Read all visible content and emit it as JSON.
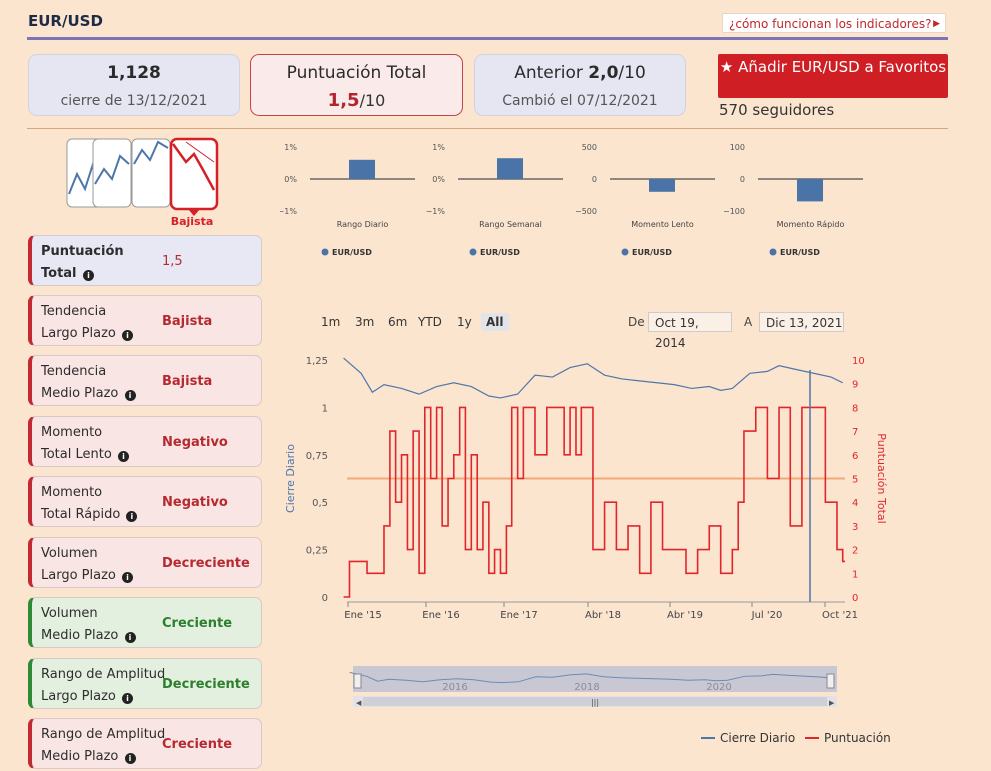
{
  "header": {
    "title": "EUR/USD",
    "help_link": "¿cómo funcionan los indicadores?"
  },
  "cards": {
    "close_value": "1,128",
    "close_date": "cierre de 13/12/2021",
    "total_title": "Puntuación Total",
    "total_score": "1,5",
    "total_denom": "/10",
    "prev_label": "Anterior ",
    "prev_score": "2,0",
    "prev_denom": "/10",
    "prev_changed": "Cambió el 07/12/2021"
  },
  "favorites": {
    "button_label": "Añadir EUR/USD a Favoritos",
    "followers": "570 seguidores"
  },
  "trend_badge": "Bajista",
  "indicators": [
    {
      "line1": "Puntuación",
      "line2": "Total",
      "value": "1,5"
    },
    {
      "line1": "Tendencia",
      "line2": "Largo Plazo",
      "value": "Bajista"
    },
    {
      "line1": "Tendencia",
      "line2": "Medio Plazo",
      "value": "Bajista"
    },
    {
      "line1": "Momento",
      "line2": "Total Lento",
      "value": "Negativo"
    },
    {
      "line1": "Momento",
      "line2": "Total Rápido",
      "value": "Negativo"
    },
    {
      "line1": "Volumen",
      "line2": "Largo Plazo",
      "value": "Decreciente"
    },
    {
      "line1": "Volumen",
      "line2": "Medio Plazo",
      "value": "Creciente"
    },
    {
      "line1": "Rango de Amplitud",
      "line2": "Largo Plazo",
      "value": "Decreciente"
    },
    {
      "line1": "Rango de Amplitud",
      "line2": "Medio Plazo",
      "value": "Creciente"
    }
  ],
  "timeframes": [
    "1m",
    "3m",
    "6m",
    "YTD",
    "1y",
    "All"
  ],
  "range": {
    "from_label": "De",
    "from": "Oct 19, 2014",
    "to_label": "A",
    "to": "Dic 13, 2021"
  },
  "colors": {
    "bar": "#4a74a8",
    "close_line": "#4e77a9",
    "score_line": "#e0262c",
    "accent": "#cf1f24"
  },
  "chart_data": [
    {
      "type": "bar",
      "title": "",
      "xlabel": "Rango Diario",
      "series": [
        {
          "name": "EUR/USD",
          "values": [
            0.6
          ]
        }
      ],
      "ylim": [
        -1,
        1
      ],
      "yticks": [
        "1%",
        "0%",
        "−1%"
      ]
    },
    {
      "type": "bar",
      "title": "",
      "xlabel": "Rango Semanal",
      "series": [
        {
          "name": "EUR/USD",
          "values": [
            0.65
          ]
        }
      ],
      "ylim": [
        -1,
        1
      ],
      "yticks": [
        "1%",
        "0%",
        "−1%"
      ]
    },
    {
      "type": "bar",
      "title": "",
      "xlabel": "Momento Lento",
      "series": [
        {
          "name": "EUR/USD",
          "values": [
            -200
          ]
        }
      ],
      "ylim": [
        -500,
        500
      ],
      "yticks": [
        "500",
        "0",
        "−500"
      ]
    },
    {
      "type": "bar",
      "title": "",
      "xlabel": "Momento Rápido",
      "series": [
        {
          "name": "EUR/USD",
          "values": [
            -70
          ]
        }
      ],
      "ylim": [
        -100,
        100
      ],
      "yticks": [
        "100",
        "0",
        "−100"
      ]
    },
    {
      "type": "line",
      "ylabel": "Cierre Diario",
      "y2label": "Puntuación Total",
      "ylim": [
        0,
        1.25
      ],
      "y2lim": [
        0,
        10
      ],
      "yticks": [
        "0",
        "0,25",
        "0,5",
        "0,75",
        "1",
        "1,25"
      ],
      "y2ticks": [
        "0",
        "1",
        "2",
        "3",
        "4",
        "5",
        "6",
        "7",
        "8",
        "9",
        "10"
      ],
      "xticks": [
        "Ene '15",
        "Ene '16",
        "Ene '17",
        "Abr '18",
        "Abr '19",
        "Jul '20",
        "Oct '21"
      ],
      "xlim": [
        "2014-10-19",
        "2021-12-13"
      ],
      "threshold": 5,
      "series": [
        {
          "name": "Cierre Diario",
          "axis": "left",
          "x": [
            "2014-10",
            "2015-01",
            "2015-03",
            "2015-05",
            "2015-08",
            "2015-11",
            "2016-02",
            "2016-05",
            "2016-08",
            "2016-11",
            "2017-01",
            "2017-04",
            "2017-07",
            "2017-10",
            "2018-01",
            "2018-04",
            "2018-07",
            "2018-10",
            "2019-01",
            "2019-04",
            "2019-07",
            "2019-10",
            "2020-01",
            "2020-03",
            "2020-05",
            "2020-08",
            "2020-11",
            "2021-01",
            "2021-04",
            "2021-07",
            "2021-10",
            "2021-12"
          ],
          "y": [
            1.26,
            1.18,
            1.08,
            1.12,
            1.1,
            1.07,
            1.11,
            1.13,
            1.11,
            1.06,
            1.05,
            1.07,
            1.17,
            1.16,
            1.21,
            1.23,
            1.17,
            1.15,
            1.14,
            1.13,
            1.12,
            1.1,
            1.11,
            1.09,
            1.1,
            1.18,
            1.19,
            1.22,
            1.2,
            1.18,
            1.16,
            1.13
          ]
        },
        {
          "name": "Puntuación",
          "axis": "right",
          "x": [
            "2014-10",
            "2014-11",
            "2015-02",
            "2015-05",
            "2015-06",
            "2015-07",
            "2015-08",
            "2015-09",
            "2015-10",
            "2015-11",
            "2015-12",
            "2016-01",
            "2016-02",
            "2016-03",
            "2016-04",
            "2016-05",
            "2016-06",
            "2016-07",
            "2016-08",
            "2016-09",
            "2016-10",
            "2016-11",
            "2016-12",
            "2017-01",
            "2017-02",
            "2017-03",
            "2017-04",
            "2017-05",
            "2017-07",
            "2017-09",
            "2017-10",
            "2017-12",
            "2018-01",
            "2018-02",
            "2018-03",
            "2018-05",
            "2018-07",
            "2018-09",
            "2018-11",
            "2019-01",
            "2019-03",
            "2019-05",
            "2019-07",
            "2019-09",
            "2019-11",
            "2020-01",
            "2020-03",
            "2020-05",
            "2020-06",
            "2020-07",
            "2020-09",
            "2020-11",
            "2021-01",
            "2021-03",
            "2021-05",
            "2021-07",
            "2021-09",
            "2021-11",
            "2021-12"
          ],
          "y": [
            0,
            1.5,
            1,
            3,
            7,
            4,
            6,
            2,
            7,
            1,
            8,
            5,
            8,
            3,
            5,
            6,
            8,
            2,
            6,
            2,
            4,
            1,
            2,
            1,
            3,
            8,
            5,
            8,
            6,
            8,
            8,
            6,
            8,
            6,
            8,
            2,
            4,
            2,
            3,
            1,
            4,
            2,
            2,
            1,
            2,
            3,
            1,
            2,
            4,
            7,
            8,
            5,
            8,
            3,
            8,
            8,
            4,
            2,
            1.5
          ]
        }
      ]
    }
  ],
  "legend": {
    "close": "Cierre Diario",
    "score": "Puntuación"
  },
  "navigator": {
    "labels": [
      "2016",
      "2018",
      "2020"
    ]
  }
}
